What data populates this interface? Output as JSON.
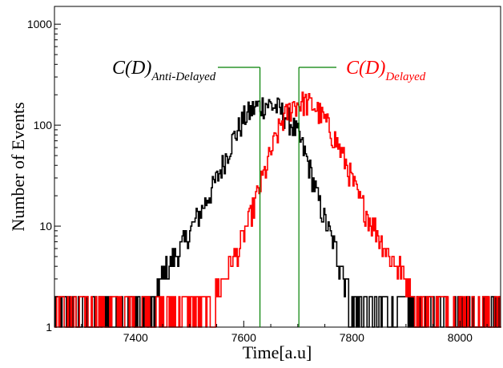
{
  "chart_data": {
    "type": "line",
    "title": "",
    "xlabel": "Time[a.u]",
    "ylabel": "Number of Events",
    "xlim": [
      7250,
      8075
    ],
    "ylim": [
      1,
      1500
    ],
    "yscale": "log",
    "grid": false,
    "xticks": [
      7400,
      7600,
      7800,
      8000
    ],
    "xtick_labels": [
      "7400",
      "7600",
      "7800",
      "8000"
    ],
    "yticks": [
      1,
      10,
      100,
      1000
    ],
    "ytick_labels": [
      "1",
      "10",
      "100",
      "1000"
    ],
    "series": [
      {
        "color": "#000000",
        "x": [
          7250,
          7400,
          7430,
          7460,
          7490,
          7520,
          7550,
          7575,
          7600,
          7620,
          7640,
          7660,
          7680,
          7700,
          7720,
          7740,
          7760,
          7780,
          7800,
          7830
        ],
        "y": [
          1,
          1,
          2,
          4,
          7,
          14,
          30,
          65,
          120,
          150,
          165,
          150,
          120,
          80,
          40,
          16,
          8,
          4,
          2,
          1
        ]
      },
      {
        "color": "#ff0000",
        "x": [
          7470,
          7530,
          7560,
          7590,
          7610,
          7630,
          7650,
          7670,
          7690,
          7710,
          7730,
          7750,
          7770,
          7790,
          7810,
          7840,
          7870,
          7900,
          7930,
          7960,
          8075
        ],
        "y": [
          1,
          2,
          3,
          6,
          12,
          25,
          55,
          110,
          160,
          170,
          155,
          110,
          70,
          40,
          20,
          10,
          5,
          3,
          2,
          1,
          1
        ]
      }
    ],
    "annotations": [
      {
        "main": "C(D)",
        "sub": "Anti-Delayed",
        "color": "#000000",
        "x": 7630
      },
      {
        "main": "C(D)",
        "sub": "Delayed",
        "color": "#ff0000",
        "x": 7702
      }
    ],
    "noise_level": [
      1,
      2
    ]
  }
}
